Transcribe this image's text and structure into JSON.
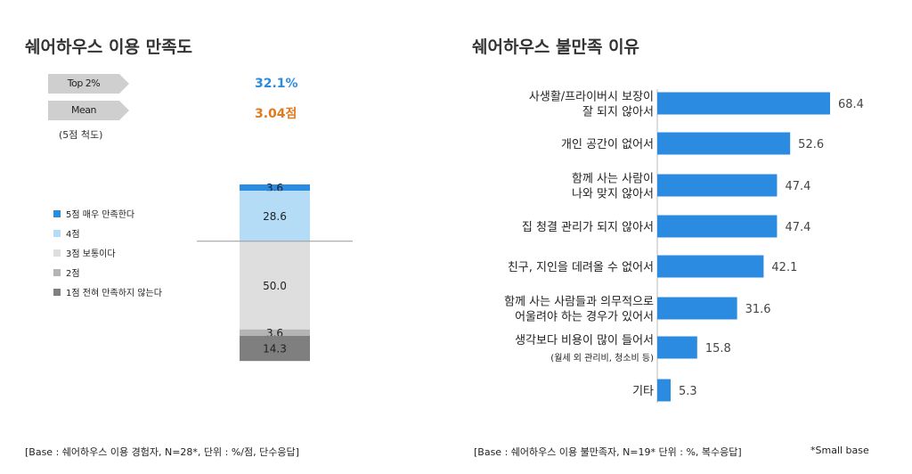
{
  "left": {
    "title": "쉐어하우스 이용 만족도",
    "top2": {
      "label": "Top 2%",
      "value": "32.1%",
      "color": "#2b8be0"
    },
    "mean": {
      "label": "Mean",
      "value": "3.04점",
      "color": "#e07a1f"
    },
    "scale_note": "(5점 척도)",
    "footer": "[Base :  쉐어하우스 이용 경험자, N=28*, 단위 : %/점, 단수응답]"
  },
  "right": {
    "title": "쉐어하우스 불만족 이유",
    "footer": "[Base :  쉐어하우스 이용 불만족자, N=19* 단위 : %, 복수응답]",
    "small_base": "*Small base"
  },
  "chart_data": [
    {
      "type": "bar",
      "orientation": "vertical-stacked-100",
      "categories": [
        ""
      ],
      "series": [
        {
          "name": "5점 매우 만족한다",
          "values": [
            3.6
          ],
          "color": "#2b8be0"
        },
        {
          "name": "4점",
          "values": [
            28.6
          ],
          "color": "#b5dcf6"
        },
        {
          "name": "3점 보통이다",
          "values": [
            50.0
          ],
          "color": "#dedede"
        },
        {
          "name": "2점",
          "values": [
            3.6
          ],
          "color": "#b4b4b4"
        },
        {
          "name": "1점 전혀 만족하지 않는다",
          "values": [
            14.3
          ],
          "color": "#7f7f7f"
        }
      ],
      "ylim": [
        0,
        100
      ],
      "legend": "left"
    },
    {
      "type": "bar",
      "orientation": "horizontal",
      "categories": [
        "사생활/프라이버시 보장이\n잘 되지 않아서",
        "개인 공간이 없어서",
        "함께 사는 사람이\n나와 맞지 않아서",
        "집 청결 관리가 되지 않아서",
        "친구, 지인을 데려올 수 없어서",
        "함께 사는 사람들과 의무적으로\n어울려야 하는 경우가 있어서",
        "생각보다 비용이 많이 들어서",
        "기타"
      ],
      "category_notes": [
        "",
        "",
        "",
        "",
        "",
        "",
        "(월세 외 관리비, 청소비 등)",
        ""
      ],
      "values": [
        68.4,
        52.6,
        47.4,
        47.4,
        42.1,
        31.6,
        15.8,
        5.3
      ],
      "color": "#2b8be0",
      "xlim": [
        0,
        100
      ]
    }
  ]
}
